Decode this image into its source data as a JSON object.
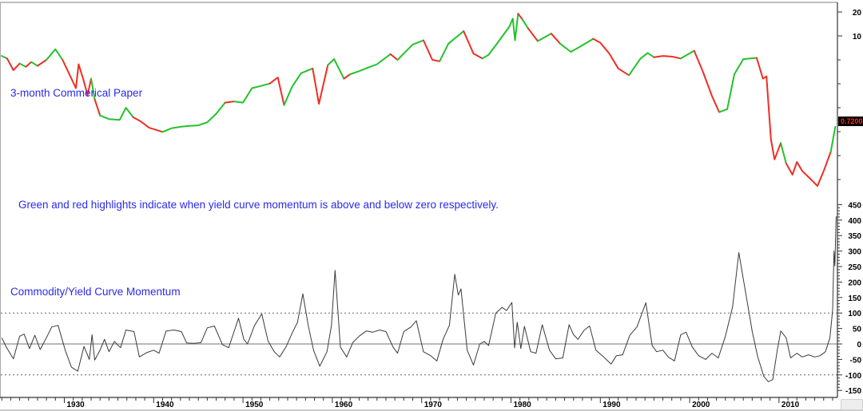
{
  "colors": {
    "momentum_above": "#22c32b",
    "momentum_below": "#ee2e24",
    "momentum_line": "#3a3a3a",
    "annotation_blue": "#2a2aee",
    "price_tag_bg": "#000000",
    "price_tag_text": "#ff2a1a",
    "dotted_grid": "#666666",
    "zero_line": "#909090",
    "frame": "#aaaaaa",
    "axis": "#333333",
    "tick_label": "#000000"
  },
  "annotations": {
    "rate_label": "3-month Commerical Paper",
    "note": "Green and red highlights indicate when yield curve momentum is above and below zero respectively.",
    "momentum_label": "Commodity/Yield Curve Momentum",
    "price_tag": "0.7200"
  },
  "x_axis": {
    "decade_labels": [
      "1930",
      "1940",
      "1950",
      "1960",
      "1970",
      "1980",
      "1990",
      "2000",
      "2010"
    ],
    "minor_ticks": "yearly",
    "range": [
      1923,
      2016.5
    ]
  },
  "chart_data": [
    {
      "type": "line",
      "panel": "top",
      "title": "3-month Commerical Paper",
      "scale": "log",
      "color_rule": "green when Commodity/Yield Curve Momentum is above zero, red when below zero",
      "last_value": 0.72,
      "last_value_label": "0.7200",
      "y_axis": {
        "side": "right",
        "labeled_ticks": [
          "20",
          "10"
        ],
        "labeled_tick_values": [
          20,
          10
        ],
        "tick_pattern": "halving"
      },
      "series": [
        {
          "name": "3-month Commercial Paper rate (%)",
          "points": [
            [
              1923,
              5.6
            ],
            [
              1923.6,
              5.2
            ],
            [
              1924.3,
              3.7
            ],
            [
              1925,
              4.5
            ],
            [
              1925.7,
              4.1
            ],
            [
              1926.3,
              4.7
            ],
            [
              1927,
              4.2
            ],
            [
              1928,
              5.0
            ],
            [
              1929,
              6.8
            ],
            [
              1929.8,
              5.0
            ],
            [
              1930.4,
              3.6
            ],
            [
              1931.3,
              2.2
            ],
            [
              1931.6,
              4.4
            ],
            [
              1932.1,
              2.9
            ],
            [
              1932.6,
              1.8
            ],
            [
              1933,
              2.9
            ],
            [
              1933.4,
              1.6
            ],
            [
              1934,
              1.0
            ],
            [
              1935,
              0.9
            ],
            [
              1936.2,
              0.88
            ],
            [
              1936.9,
              1.25
            ],
            [
              1937.7,
              0.95
            ],
            [
              1938.5,
              0.85
            ],
            [
              1939.5,
              0.7
            ],
            [
              1941,
              0.62
            ],
            [
              1942,
              0.69
            ],
            [
              1943,
              0.72
            ],
            [
              1944,
              0.74
            ],
            [
              1945,
              0.75
            ],
            [
              1946,
              0.82
            ],
            [
              1947,
              1.05
            ],
            [
              1948,
              1.45
            ],
            [
              1949,
              1.5
            ],
            [
              1950,
              1.45
            ],
            [
              1951,
              2.2
            ],
            [
              1952,
              2.35
            ],
            [
              1953,
              2.52
            ],
            [
              1953.9,
              3.0
            ],
            [
              1954.6,
              1.35
            ],
            [
              1955.5,
              2.3
            ],
            [
              1956.5,
              3.4
            ],
            [
              1957.8,
              3.9
            ],
            [
              1958.5,
              1.4
            ],
            [
              1959.5,
              4.3
            ],
            [
              1960.2,
              5.1
            ],
            [
              1961.3,
              2.9
            ],
            [
              1962,
              3.3
            ],
            [
              1963,
              3.6
            ],
            [
              1964,
              4.0
            ],
            [
              1965,
              4.4
            ],
            [
              1966.5,
              5.9
            ],
            [
              1967.3,
              5.0
            ],
            [
              1968,
              6.0
            ],
            [
              1969,
              7.8
            ],
            [
              1970.2,
              8.8
            ],
            [
              1971.2,
              5.0
            ],
            [
              1972,
              4.8
            ],
            [
              1973,
              8.0
            ],
            [
              1974.7,
              11.5
            ],
            [
              1975.8,
              6.0
            ],
            [
              1976.8,
              5.2
            ],
            [
              1977.5,
              5.8
            ],
            [
              1978.5,
              8.2
            ],
            [
              1979.8,
              13.0
            ],
            [
              1980.2,
              16.5
            ],
            [
              1980.45,
              8.8
            ],
            [
              1980.8,
              19.0
            ],
            [
              1981.3,
              16.0
            ],
            [
              1981.9,
              12.5
            ],
            [
              1983,
              8.6
            ],
            [
              1984.5,
              10.7
            ],
            [
              1985.5,
              8.0
            ],
            [
              1986.7,
              6.3
            ],
            [
              1987.8,
              7.4
            ],
            [
              1989.2,
              9.2
            ],
            [
              1990,
              8.2
            ],
            [
              1991,
              6.0
            ],
            [
              1992,
              3.9
            ],
            [
              1993.2,
              3.2
            ],
            [
              1994.5,
              5.2
            ],
            [
              1995.3,
              6.1
            ],
            [
              1996,
              5.4
            ],
            [
              1997,
              5.6
            ],
            [
              1998,
              5.5
            ],
            [
              1999,
              5.2
            ],
            [
              2000.5,
              6.5
            ],
            [
              2001.5,
              3.5
            ],
            [
              2002.5,
              1.75
            ],
            [
              2003.3,
              1.1
            ],
            [
              2004.2,
              1.2
            ],
            [
              2005,
              3.3
            ],
            [
              2006,
              5.1
            ],
            [
              2007.5,
              5.3
            ],
            [
              2008.2,
              2.9
            ],
            [
              2008.6,
              3.1
            ],
            [
              2009.1,
              0.5
            ],
            [
              2009.5,
              0.28
            ],
            [
              2010.2,
              0.45
            ],
            [
              2010.8,
              0.25
            ],
            [
              2011.5,
              0.18
            ],
            [
              2012,
              0.26
            ],
            [
              2012.6,
              0.2
            ],
            [
              2013.5,
              0.16
            ],
            [
              2014.3,
              0.13
            ],
            [
              2015,
              0.2
            ],
            [
              2015.8,
              0.35
            ],
            [
              2016.3,
              0.72
            ]
          ]
        }
      ]
    },
    {
      "type": "line",
      "panel": "bottom",
      "title": "Commodity/Yield Curve Momentum",
      "y_axis": {
        "side": "right",
        "min": -150,
        "max": 450,
        "tick_step": 50,
        "minor_tick_step": 10,
        "labels": [
          "450",
          "400",
          "350",
          "300",
          "250",
          "200",
          "150",
          "100",
          "50",
          "0",
          "-50",
          "-100",
          "-150"
        ],
        "label_values": [
          450,
          400,
          350,
          300,
          250,
          200,
          150,
          100,
          50,
          0,
          -50,
          -100,
          -150
        ]
      },
      "reference_lines": {
        "solid": [
          0
        ],
        "dotted": [
          100,
          -100
        ]
      },
      "series": [
        {
          "name": "Commodity/Yield Curve Momentum",
          "points": [
            [
              1923,
              20
            ],
            [
              1923.5,
              -10
            ],
            [
              1924.3,
              -48
            ],
            [
              1925,
              25
            ],
            [
              1925.5,
              32
            ],
            [
              1926.1,
              -15
            ],
            [
              1926.7,
              28
            ],
            [
              1927.3,
              -18
            ],
            [
              1928,
              20
            ],
            [
              1928.6,
              55
            ],
            [
              1929.3,
              60
            ],
            [
              1930.1,
              -20
            ],
            [
              1930.8,
              -75
            ],
            [
              1931.5,
              -88
            ],
            [
              1932.2,
              -8
            ],
            [
              1932.8,
              -50
            ],
            [
              1933.1,
              30
            ],
            [
              1933.4,
              -52
            ],
            [
              1934,
              -20
            ],
            [
              1934.5,
              15
            ],
            [
              1935,
              -25
            ],
            [
              1935.6,
              8
            ],
            [
              1936.3,
              -12
            ],
            [
              1936.9,
              45
            ],
            [
              1937.8,
              40
            ],
            [
              1938.4,
              -42
            ],
            [
              1939.2,
              -28
            ],
            [
              1940,
              -20
            ],
            [
              1940.6,
              -30
            ],
            [
              1941.4,
              42
            ],
            [
              1942.3,
              45
            ],
            [
              1943.1,
              40
            ],
            [
              1943.7,
              3
            ],
            [
              1944.5,
              2
            ],
            [
              1945.3,
              4
            ],
            [
              1946,
              52
            ],
            [
              1946.8,
              58
            ],
            [
              1947.7,
              -2
            ],
            [
              1948.4,
              -12
            ],
            [
              1949,
              40
            ],
            [
              1949.5,
              83
            ],
            [
              1950.1,
              15
            ],
            [
              1950.5,
              0
            ],
            [
              1951.3,
              60
            ],
            [
              1952.1,
              97
            ],
            [
              1952.8,
              10
            ],
            [
              1953.5,
              -25
            ],
            [
              1954.1,
              -42
            ],
            [
              1954.8,
              -10
            ],
            [
              1955.5,
              35
            ],
            [
              1956.1,
              70
            ],
            [
              1956.7,
              162
            ],
            [
              1957.3,
              60
            ],
            [
              1957.9,
              -20
            ],
            [
              1958.6,
              -72
            ],
            [
              1959.4,
              -25
            ],
            [
              1959.9,
              60
            ],
            [
              1960.3,
              238
            ],
            [
              1960.9,
              -10
            ],
            [
              1961.6,
              -42
            ],
            [
              1962.3,
              5
            ],
            [
              1963,
              25
            ],
            [
              1963.8,
              42
            ],
            [
              1964.5,
              38
            ],
            [
              1965.3,
              45
            ],
            [
              1966,
              40
            ],
            [
              1966.8,
              -10
            ],
            [
              1967.3,
              -30
            ],
            [
              1968,
              40
            ],
            [
              1968.8,
              55
            ],
            [
              1969.4,
              75
            ],
            [
              1970.2,
              -25
            ],
            [
              1971,
              -38
            ],
            [
              1971.7,
              -55
            ],
            [
              1972.4,
              15
            ],
            [
              1973.1,
              60
            ],
            [
              1973.7,
              225
            ],
            [
              1974.1,
              158
            ],
            [
              1974.4,
              178
            ],
            [
              1975.1,
              -20
            ],
            [
              1975.8,
              -68
            ],
            [
              1976.5,
              0
            ],
            [
              1977,
              8
            ],
            [
              1977.5,
              -5
            ],
            [
              1978.3,
              100
            ],
            [
              1979,
              118
            ],
            [
              1979.5,
              108
            ],
            [
              1980.1,
              134
            ],
            [
              1980.4,
              -13
            ],
            [
              1980.7,
              70
            ],
            [
              1981.1,
              -15
            ],
            [
              1981.5,
              57
            ],
            [
              1982.2,
              -25
            ],
            [
              1982.8,
              -30
            ],
            [
              1983.5,
              62
            ],
            [
              1984.3,
              -20
            ],
            [
              1985,
              -48
            ],
            [
              1985.8,
              -45
            ],
            [
              1986.5,
              62
            ],
            [
              1987,
              30
            ],
            [
              1987.5,
              15
            ],
            [
              1988.2,
              45
            ],
            [
              1988.8,
              58
            ],
            [
              1989.5,
              -20
            ],
            [
              1990.3,
              -40
            ],
            [
              1991.2,
              -65
            ],
            [
              1991.8,
              -38
            ],
            [
              1992.5,
              -35
            ],
            [
              1993.3,
              28
            ],
            [
              1994.1,
              55
            ],
            [
              1995.1,
              133
            ],
            [
              1995.8,
              -5
            ],
            [
              1996.3,
              -25
            ],
            [
              1997,
              -20
            ],
            [
              1997.6,
              -42
            ],
            [
              1998.3,
              -55
            ],
            [
              1999,
              30
            ],
            [
              1999.6,
              38
            ],
            [
              2000.3,
              -10
            ],
            [
              2001,
              -38
            ],
            [
              2001.8,
              -50
            ],
            [
              2002.5,
              -30
            ],
            [
              2003.2,
              -45
            ],
            [
              2004,
              25
            ],
            [
              2004.8,
              120
            ],
            [
              2005.5,
              295
            ],
            [
              2006.3,
              160
            ],
            [
              2007,
              40
            ],
            [
              2007.6,
              -40
            ],
            [
              2008.3,
              -105
            ],
            [
              2008.8,
              -122
            ],
            [
              2009.3,
              -115
            ],
            [
              2009.8,
              -20
            ],
            [
              2010.2,
              42
            ],
            [
              2010.8,
              20
            ],
            [
              2011.3,
              -45
            ],
            [
              2012,
              -30
            ],
            [
              2012.6,
              -42
            ],
            [
              2013.3,
              -35
            ],
            [
              2014,
              -42
            ],
            [
              2014.6,
              -38
            ],
            [
              2015.2,
              -25
            ],
            [
              2015.7,
              20
            ],
            [
              2016,
              110
            ],
            [
              2016.15,
              300
            ],
            [
              2016.25,
              252
            ],
            [
              2016.4,
              412
            ]
          ]
        }
      ]
    }
  ]
}
